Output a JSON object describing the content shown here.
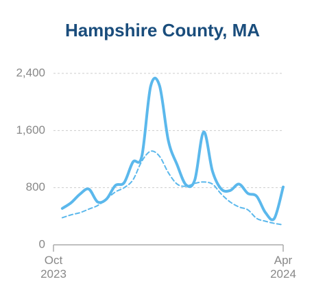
{
  "chart_data": {
    "type": "line",
    "title": "Hampshire County, MA",
    "x": [
      1,
      2,
      3,
      4,
      5,
      6,
      7,
      8,
      9,
      10,
      11,
      12,
      13,
      14,
      15,
      16,
      17,
      18,
      19,
      20,
      21,
      22,
      23,
      24,
      25,
      26
    ],
    "xlim": [
      0,
      26
    ],
    "xticks": [
      {
        "value": 0,
        "label": "Oct 2023"
      },
      {
        "value": 26,
        "label": "Apr 2024"
      }
    ],
    "ylim": [
      0,
      2400
    ],
    "yticks": [
      0,
      800,
      {
        "value": 1600,
        "label": "1,600"
      },
      {
        "value": 2400,
        "label": "2,400"
      }
    ],
    "grid": true,
    "series": [
      {
        "color": "#5bb8ec",
        "style": "solid",
        "values": [
          510,
          590,
          710,
          780,
          600,
          640,
          830,
          870,
          1160,
          1240,
          2220,
          2230,
          1460,
          1120,
          840,
          910,
          1580,
          1030,
          780,
          760,
          850,
          720,
          680,
          450,
          370,
          810
        ]
      },
      {
        "color": "#5bb8ec",
        "style": "dashed",
        "values": [
          380,
          420,
          450,
          500,
          550,
          640,
          740,
          800,
          910,
          1170,
          1310,
          1240,
          1010,
          850,
          820,
          860,
          880,
          850,
          710,
          600,
          530,
          490,
          370,
          330,
          300,
          280
        ]
      }
    ]
  }
}
